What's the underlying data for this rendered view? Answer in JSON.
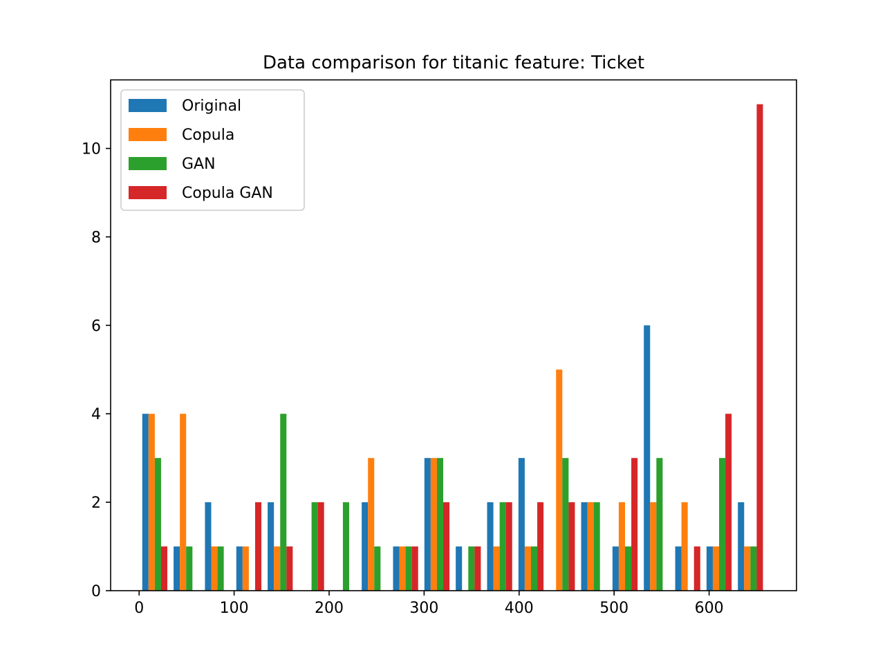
{
  "chart_data": {
    "type": "bar",
    "title": "Data comparison for titanic feature: Ticket",
    "xlabel": "",
    "ylabel": "",
    "xlim": [
      -30,
      692
    ],
    "ylim": [
      0,
      11.55
    ],
    "xticks": [
      0,
      100,
      200,
      300,
      400,
      500,
      600
    ],
    "yticks": [
      0,
      2,
      4,
      6,
      8,
      10
    ],
    "legend_position": "top-left",
    "grid": false,
    "x": [
      16.5,
      49.5,
      82.5,
      115.5,
      148.5,
      181.5,
      214.5,
      247.5,
      280.5,
      313.5,
      346.5,
      379.5,
      412.5,
      445.5,
      478.5,
      511.5,
      544.5,
      577.5,
      610.5,
      643.5
    ],
    "series": [
      {
        "name": "Original",
        "color": "#1f77b4",
        "values": [
          4,
          1,
          2,
          1,
          2,
          0,
          0,
          2,
          1,
          3,
          1,
          2,
          3,
          0,
          2,
          1,
          6,
          1,
          1,
          2
        ]
      },
      {
        "name": "Copula",
        "color": "#ff7f0e",
        "values": [
          4,
          4,
          1,
          1,
          1,
          0,
          0,
          3,
          1,
          3,
          0,
          1,
          1,
          5,
          2,
          2,
          2,
          2,
          1,
          1
        ]
      },
      {
        "name": "GAN",
        "color": "#2ca02c",
        "values": [
          3,
          1,
          1,
          0,
          4,
          2,
          2,
          1,
          1,
          3,
          1,
          2,
          1,
          3,
          2,
          1,
          3,
          0,
          3,
          1
        ]
      },
      {
        "name": "Copula GAN",
        "color": "#d62728",
        "values": [
          1,
          0,
          0,
          2,
          1,
          2,
          0,
          0,
          1,
          2,
          1,
          2,
          2,
          2,
          0,
          3,
          0,
          1,
          4,
          11
        ]
      }
    ]
  }
}
